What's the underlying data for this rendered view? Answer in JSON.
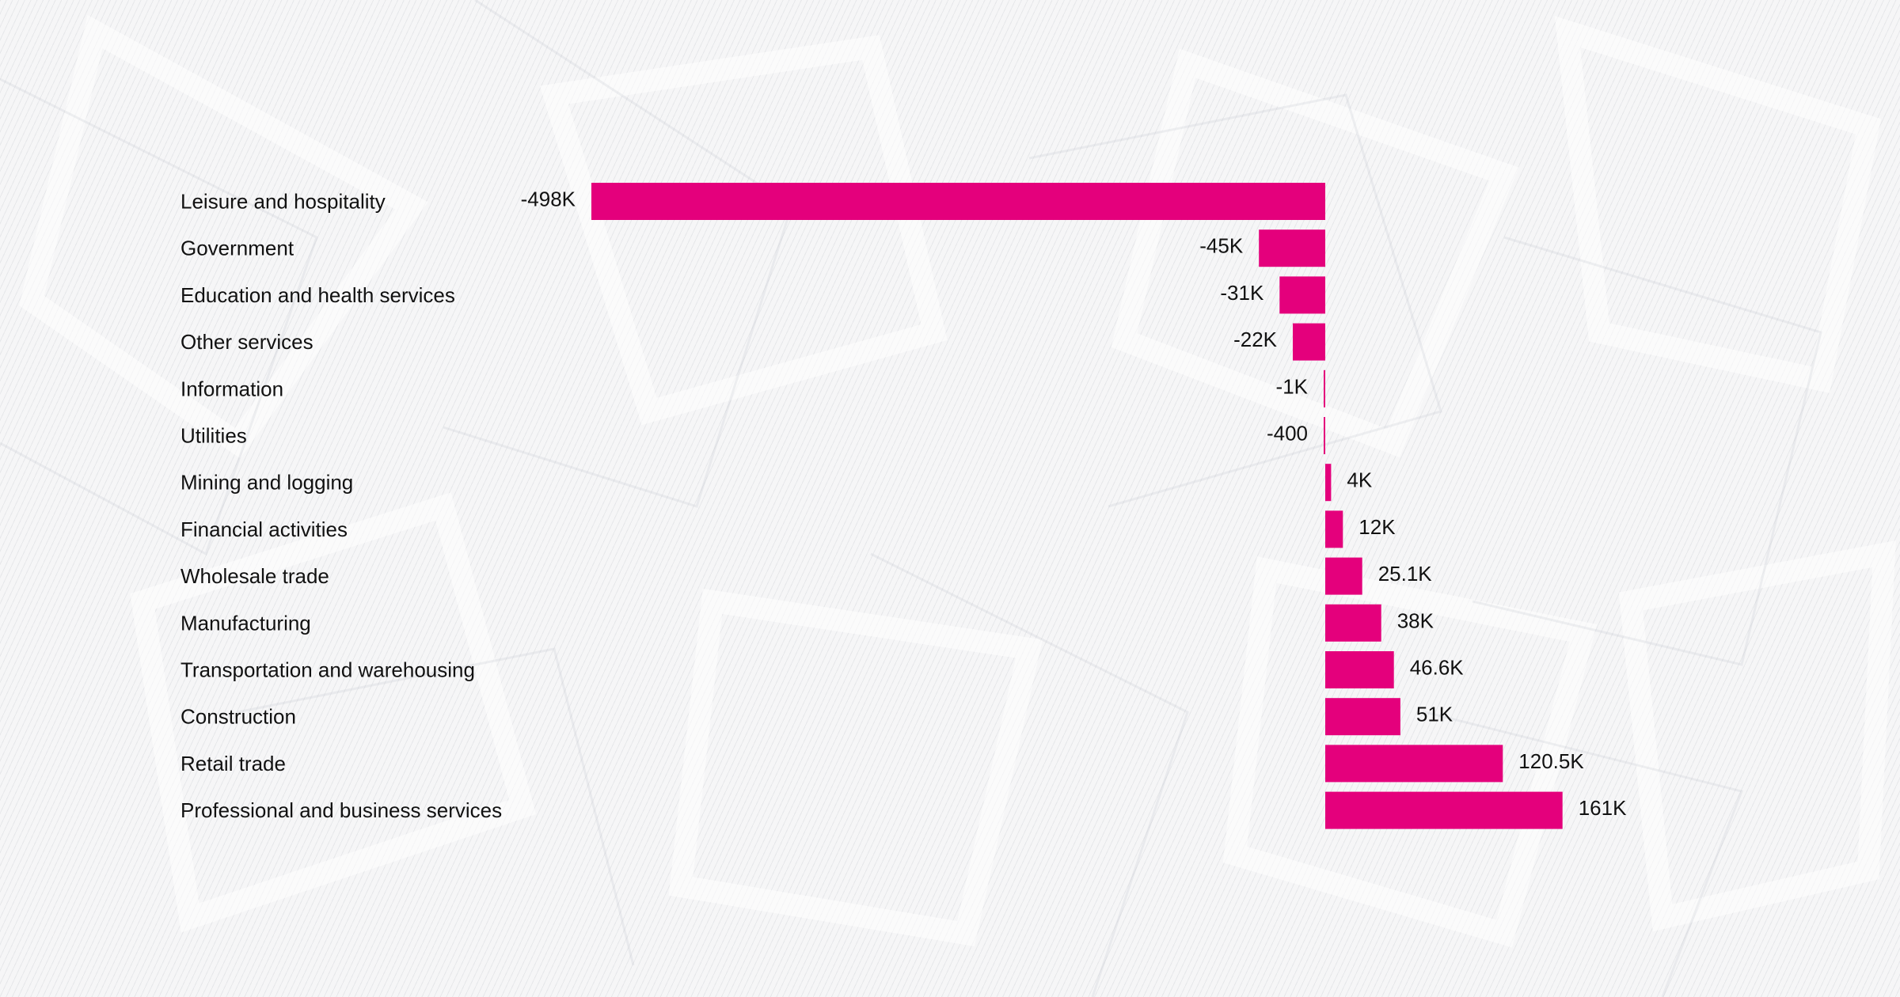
{
  "chart_data": {
    "type": "bar",
    "orientation": "horizontal",
    "title": "",
    "xlabel": "",
    "ylabel": "",
    "bar_color": "#e4007c",
    "text_color": "#111111",
    "background_color": "#f6f6f7",
    "grid": false,
    "categories": [
      "Leisure and hospitality",
      "Government",
      "Education and health services",
      "Other services",
      "Information",
      "Utilities",
      "Mining and logging",
      "Financial activities",
      "Wholesale trade",
      "Manufacturing",
      "Transportation and warehousing",
      "Construction",
      "Retail trade",
      "Professional and business services"
    ],
    "values": [
      -498000,
      -45000,
      -31000,
      -22000,
      -1000,
      -400,
      4000,
      12000,
      25100,
      38000,
      46600,
      51000,
      120500,
      161000
    ],
    "value_labels": [
      "-498K",
      "-45K",
      "-31K",
      "-22K",
      "-1K",
      "-400",
      "4K",
      "12K",
      "25.1K",
      "38K",
      "46.6K",
      "51K",
      "120.5K",
      "161K"
    ],
    "xlim": [
      -498000,
      161000
    ]
  }
}
